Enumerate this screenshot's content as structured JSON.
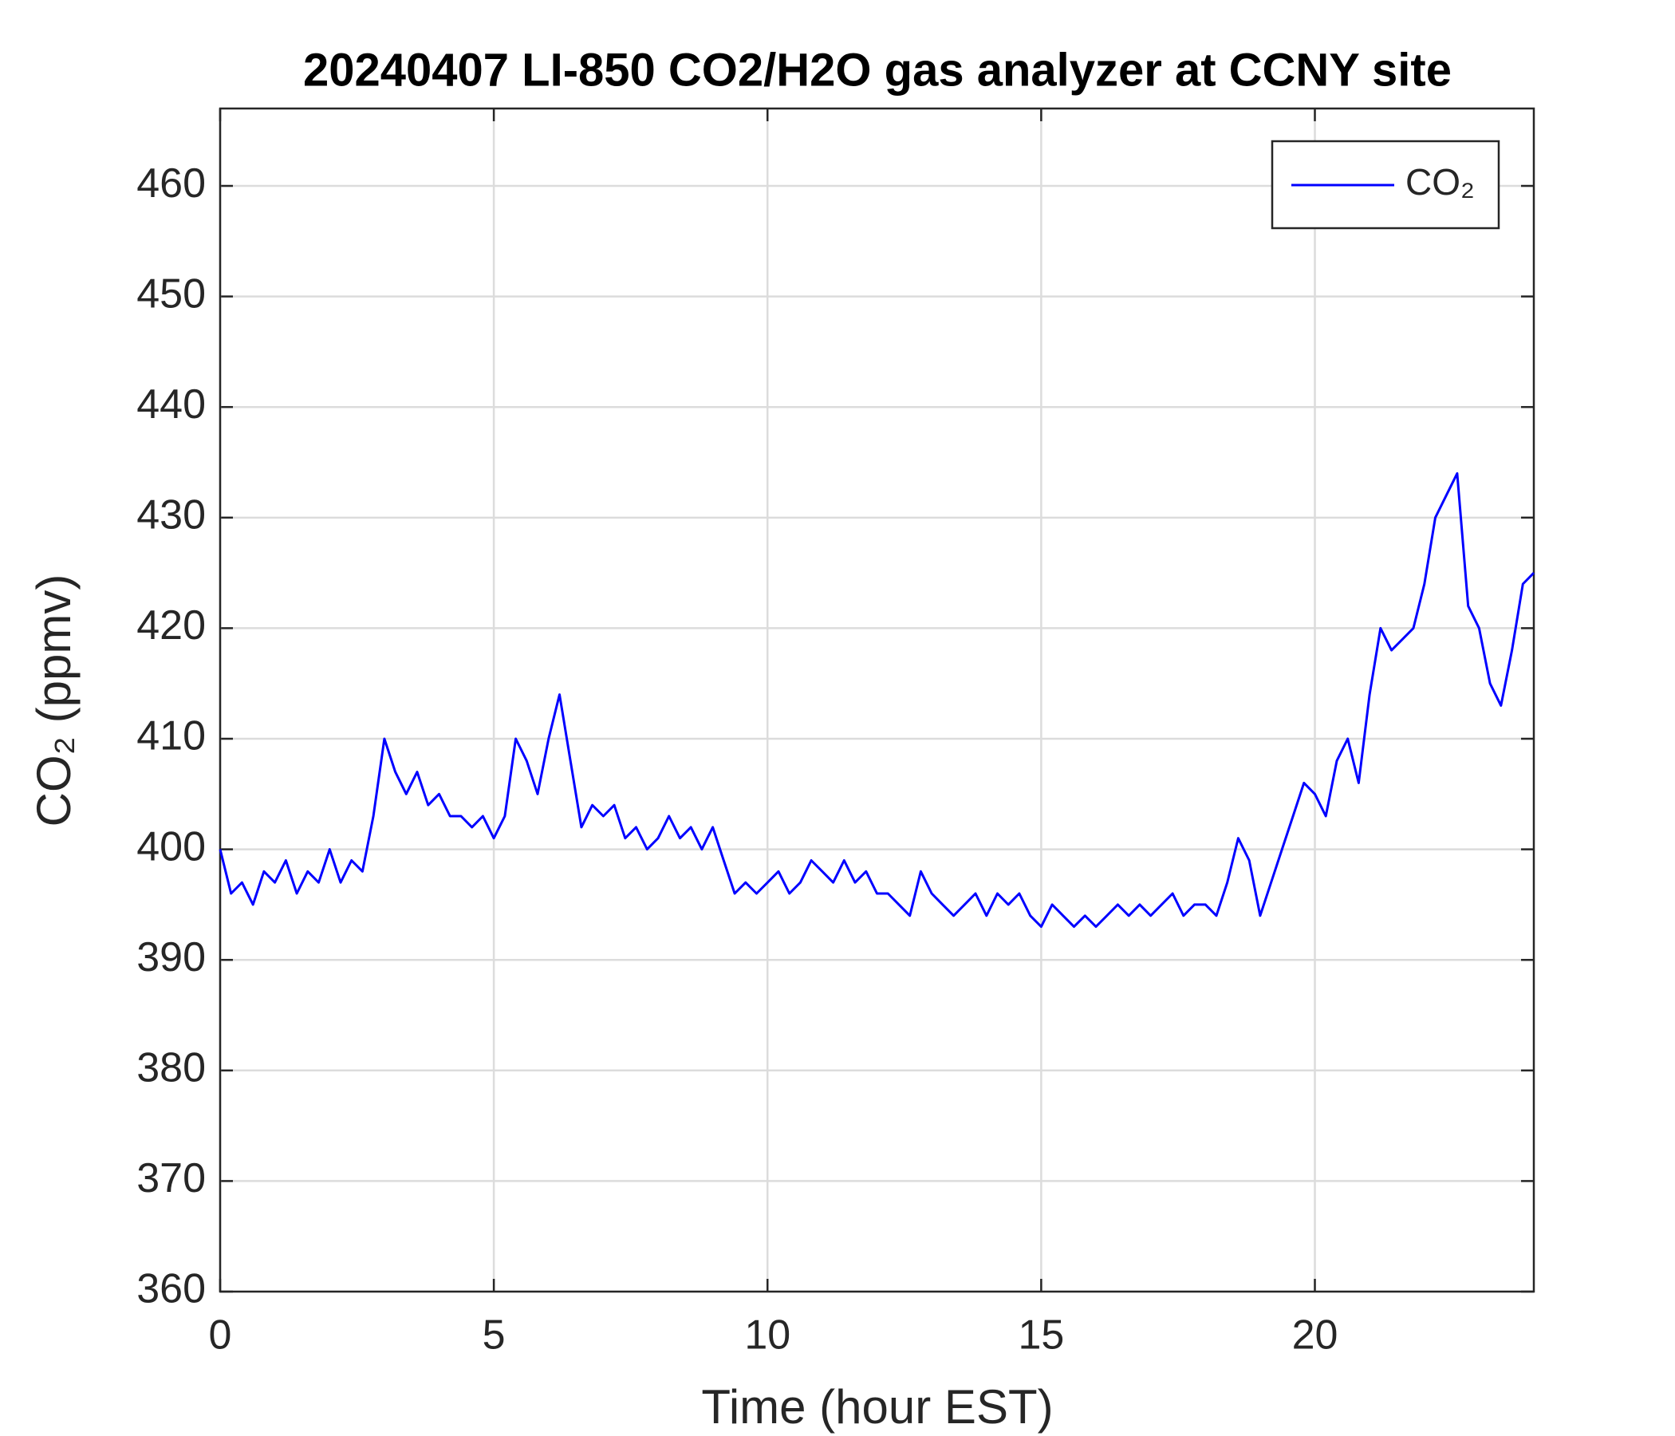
{
  "chart_data": {
    "type": "line",
    "title": "20240407 LI-850 CO2/H2O gas analyzer at CCNY site",
    "x_label": "Time (hour EST)",
    "y_label": "CO₂ (ppmv)",
    "xlim": [
      0,
      24
    ],
    "ylim": [
      360,
      467
    ],
    "xticks": [
      0,
      5,
      10,
      15,
      20
    ],
    "yticks": [
      360,
      370,
      380,
      390,
      400,
      410,
      420,
      430,
      440,
      450,
      460
    ],
    "grid": true,
    "legend": "upper right",
    "x": [
      0,
      0.2,
      0.4,
      0.6,
      0.8,
      1,
      1.2,
      1.4,
      1.6,
      1.8,
      2,
      2.2,
      2.4,
      2.6,
      2.8,
      3,
      3.2,
      3.4,
      3.6,
      3.8,
      4,
      4.2,
      4.4,
      4.6,
      4.8,
      5,
      5.2,
      5.4,
      5.6,
      5.8,
      6,
      6.2,
      6.4,
      6.6,
      6.8,
      7,
      7.2,
      7.4,
      7.6,
      7.8,
      8,
      8.2,
      8.4,
      8.6,
      8.8,
      9,
      9.2,
      9.4,
      9.6,
      9.8,
      10,
      10.2,
      10.4,
      10.6,
      10.8,
      11,
      11.2,
      11.4,
      11.6,
      11.8,
      12,
      12.2,
      12.4,
      12.6,
      12.8,
      13,
      13.2,
      13.4,
      13.6,
      13.8,
      14,
      14.2,
      14.4,
      14.6,
      14.8,
      15,
      15.2,
      15.4,
      15.6,
      15.8,
      16,
      16.2,
      16.4,
      16.6,
      16.8,
      17,
      17.2,
      17.4,
      17.6,
      17.8,
      18,
      18.2,
      18.4,
      18.6,
      18.8,
      19,
      19.2,
      19.4,
      19.6,
      19.8,
      20,
      20.2,
      20.4,
      20.6,
      20.8,
      21,
      21.2,
      21.4,
      21.6,
      21.8,
      22,
      22.2,
      22.4,
      22.6,
      22.8,
      23,
      23.2,
      23.4,
      23.6,
      23.8,
      24
    ],
    "series": [
      {
        "name": "CO₂",
        "color": "#0000ff",
        "values": [
          400,
          396,
          397,
          395,
          398,
          397,
          399,
          396,
          398,
          397,
          400,
          397,
          399,
          398,
          403,
          410,
          407,
          405,
          407,
          404,
          405,
          403,
          403,
          402,
          403,
          401,
          403,
          410,
          408,
          405,
          410,
          414,
          408,
          402,
          404,
          403,
          404,
          401,
          402,
          400,
          401,
          403,
          401,
          402,
          400,
          402,
          399,
          396,
          397,
          396,
          397,
          398,
          396,
          397,
          399,
          398,
          397,
          399,
          397,
          398,
          396,
          396,
          395,
          394,
          398,
          396,
          395,
          394,
          395,
          396,
          394,
          396,
          395,
          396,
          394,
          393,
          395,
          394,
          393,
          394,
          393,
          394,
          395,
          394,
          395,
          394,
          395,
          396,
          394,
          395,
          395,
          394,
          397,
          401,
          399,
          394,
          397,
          400,
          403,
          406,
          405,
          403,
          408,
          410,
          406,
          414,
          420,
          418,
          419,
          420,
          424,
          430,
          432,
          434,
          422,
          420,
          415,
          413,
          418,
          424,
          425
        ]
      }
    ]
  }
}
